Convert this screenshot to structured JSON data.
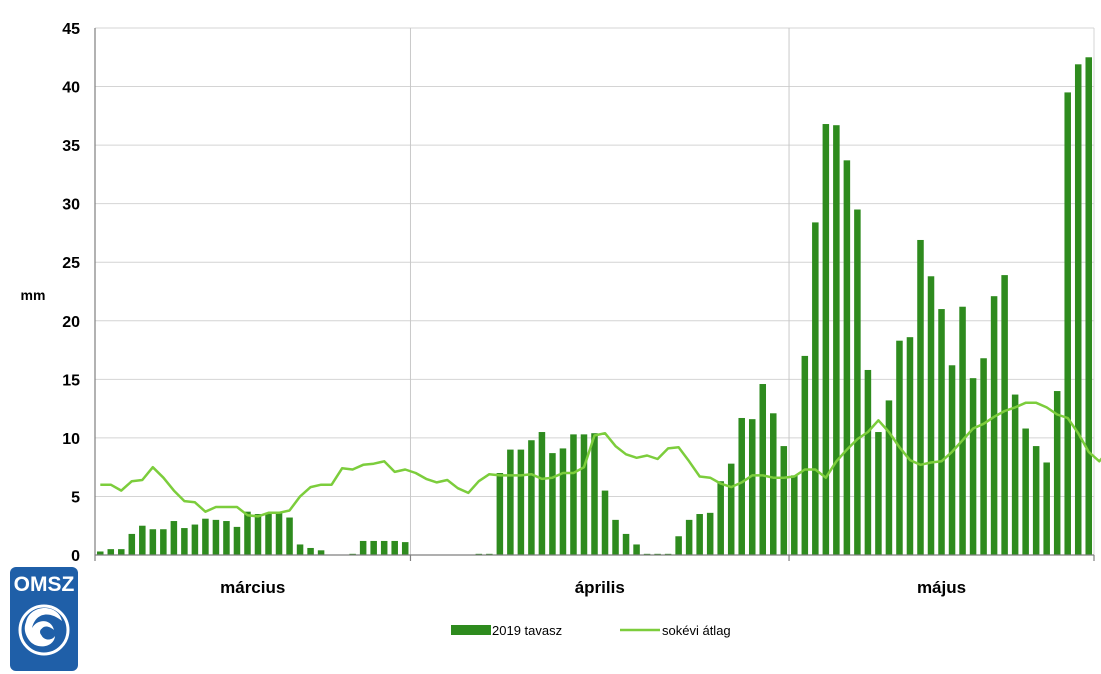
{
  "chart_data": {
    "type": "bar",
    "ylabel": "mm",
    "ylim": [
      0,
      45
    ],
    "yticks": [
      "0",
      "5",
      "10",
      "15",
      "20",
      "25",
      "30",
      "35",
      "40",
      "45"
    ],
    "months": [
      "március",
      "április",
      "május"
    ],
    "grid": true,
    "legend_position": "bottom-center",
    "series": [
      {
        "name": "2019 tavasz",
        "kind": "bar",
        "color": "#2e8b1e",
        "values": [
          0.3,
          0.5,
          0.5,
          1.8,
          2.5,
          2.2,
          2.2,
          2.9,
          2.3,
          2.6,
          3.1,
          3.0,
          2.9,
          2.4,
          3.7,
          3.5,
          3.6,
          3.7,
          3.2,
          0.9,
          0.6,
          0.4,
          0,
          0,
          0.1,
          1.2,
          1.2,
          1.2,
          1.2,
          1.1,
          0,
          0,
          0,
          0,
          0,
          0,
          0.1,
          0.1,
          7.0,
          9.0,
          9.0,
          9.8,
          10.5,
          8.7,
          9.1,
          10.3,
          10.3,
          10.4,
          5.5,
          3.0,
          1.8,
          0.9,
          0.1,
          0.1,
          0.1,
          1.6,
          3.0,
          3.5,
          3.6,
          6.3,
          7.8,
          11.7,
          11.6,
          14.6,
          12.1,
          9.3,
          6.8,
          17.0,
          28.4,
          36.8,
          36.7,
          33.7,
          29.5,
          15.8,
          10.5,
          13.2,
          18.3,
          18.6,
          26.9,
          23.8,
          21.0,
          16.2,
          21.2,
          15.1,
          16.8,
          22.1,
          23.9,
          13.7,
          10.8,
          9.3,
          7.9,
          14.0,
          39.5,
          41.9,
          42.5
        ]
      },
      {
        "name": "sokévi átlag",
        "kind": "line",
        "color": "#7ccd3c",
        "values": [
          6.0,
          6.0,
          5.5,
          6.3,
          6.4,
          7.5,
          6.6,
          5.5,
          4.6,
          4.5,
          3.7,
          4.1,
          4.1,
          4.1,
          3.4,
          3.3,
          3.6,
          3.6,
          3.8,
          5.0,
          5.8,
          6.0,
          6.0,
          7.4,
          7.3,
          7.7,
          7.8,
          8.0,
          7.1,
          7.3,
          7.0,
          6.5,
          6.2,
          6.4,
          5.7,
          5.3,
          6.3,
          6.9,
          6.8,
          6.8,
          6.8,
          6.9,
          6.5,
          6.6,
          7.0,
          7.0,
          7.5,
          10.2,
          10.4,
          9.3,
          8.6,
          8.3,
          8.5,
          8.2,
          9.1,
          9.2,
          8.0,
          6.7,
          6.6,
          6.1,
          5.8,
          6.2,
          6.8,
          6.8,
          6.6,
          6.6,
          6.7,
          7.3,
          7.3,
          6.6,
          8.0,
          9.0,
          9.9,
          10.5,
          11.5,
          10.5,
          9.2,
          8.1,
          7.7,
          7.9,
          8.0,
          8.8,
          9.8,
          10.8,
          11.2,
          11.8,
          12.3,
          12.6,
          13.0,
          13.0,
          12.6,
          12.0,
          11.7,
          10.4,
          8.8,
          8.0,
          9.0,
          10.0,
          10.7
        ]
      }
    ]
  },
  "logo": {
    "text": "OMSZ",
    "bg_color": "#1f5fa8"
  }
}
